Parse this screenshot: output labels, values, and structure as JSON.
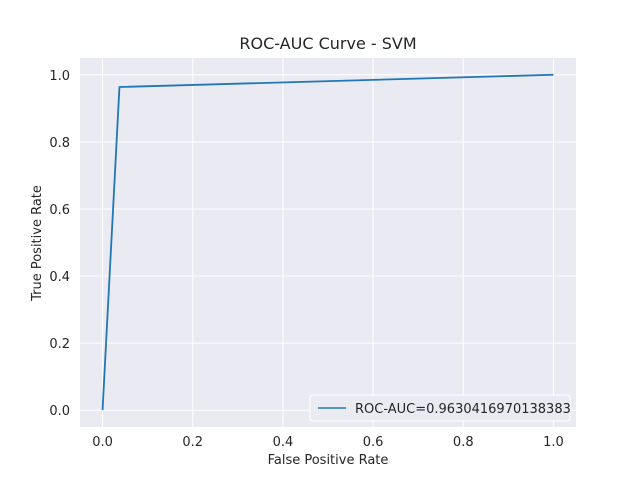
{
  "chart_data": {
    "type": "line",
    "title": "ROC-AUC Curve - SVM",
    "xlabel": "False Positive Rate",
    "ylabel": "True Positive Rate",
    "xlim": [
      -0.05,
      1.05
    ],
    "ylim": [
      -0.05,
      1.05
    ],
    "xticks": [
      0.0,
      0.2,
      0.4,
      0.6,
      0.8,
      1.0
    ],
    "yticks": [
      0.0,
      0.2,
      0.4,
      0.6,
      0.8,
      1.0
    ],
    "xtick_labels": [
      "0.0",
      "0.2",
      "0.4",
      "0.6",
      "0.8",
      "1.0"
    ],
    "ytick_labels": [
      "0.0",
      "0.2",
      "0.4",
      "0.6",
      "0.8",
      "1.0"
    ],
    "grid": true,
    "legend_position": "lower-right",
    "series": [
      {
        "name": "ROC-AUC=0.9630416970138383",
        "color": "#1f77b4",
        "x": [
          0.0,
          0.0375,
          1.0
        ],
        "y": [
          0.0,
          0.9635,
          1.0
        ]
      }
    ],
    "colors": {
      "background": "#eaeaf2",
      "grid": "#ffffff",
      "line": "#1f77b4"
    }
  }
}
